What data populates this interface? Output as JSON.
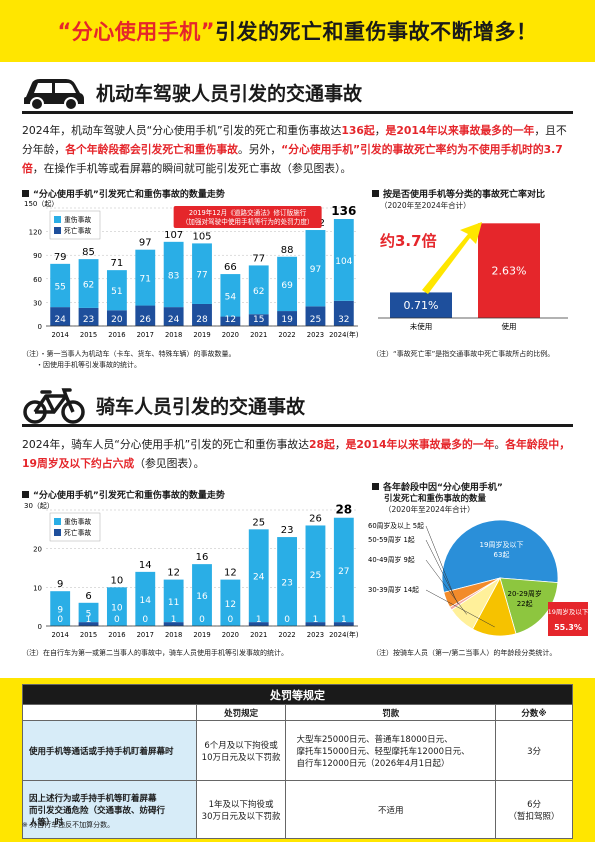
{
  "banner": {
    "q_open": "“",
    "phrase": "分心使用手机",
    "q_close": "”",
    "rest": "引发的死亡和重伤事故不断增多！"
  },
  "car": {
    "title": "机动车驾驶人员引发的交通事故",
    "p1": "2024年，机动车驾驶人员“分心使用手机”引发的死亡和重伤事故达",
    "p1_num": "136起",
    "p1_comma": "，",
    "p1_red2": "是2014年以来事故最多的一年",
    "p1_b": "，且不分年龄，",
    "p1_red3": "各个年龄段都会引发死亡和重伤事故",
    "p1_c": "。另外，",
    "p1_red4": "“分心使用手机”引发的事故死亡率约为不使用手机时的3.7倍",
    "p1_d": "，在操作手机等或看屏幕的瞬间就可能引发死亡事故（参见图表）。",
    "chart_title": "“分心使用手机”引发死亡和重伤事故的数量走势",
    "ratio_title": "按是否使用手机等分类的事故死亡率对比",
    "ratio_sub": "（2020年至2024年合计）",
    "note1": "（注）・第一当事人为机动车（卡车、货车、特殊车辆）的事故数量。",
    "note2": "・因使用手机等引发事故的统计。",
    "note3": "（注）“事故死亡率”是指交通事故中死亡事故所占的比例。"
  },
  "bike": {
    "title": "骑车人员引发的交通事故",
    "p1": "2024年，骑车人员“分心使用手机”引发的死亡和重伤事故达",
    "p1_num": "28起",
    "p1_comma": "，",
    "p1_red2": "是2014年以来事故最多的一年",
    "p1_b": "。",
    "p1_red3": "各年龄段中，19周岁及以下约占六成",
    "p1_c": "（参见图表）。",
    "chart_title": "“分心使用手机”引发死亡和重伤事故的数量走势",
    "pie_title1": "各年龄段中因“分心使用手机”",
    "pie_title2": "引发死亡和重伤事故的数量",
    "pie_sub": "（2020年至2024年合计）",
    "note1": "（注）在自行车为第一或第二当事人的事故中，骑车人员使用手机等引发事故的统计。",
    "note2": "（注）按骑车人员（第一/第二当事人）的年龄段分类统计。"
  },
  "penalty": {
    "caption": "处罚等规定",
    "h_rule": "处罚规定",
    "h_fine": "罚款",
    "h_points": "分数※",
    "r1_label": "使用手机等通话或手持手机盯着屏幕时",
    "r1_rule1": "6个月及以下拘役或",
    "r1_rule2": "10万日元及以下罚款",
    "r1_fine1": "大型车25000日元、普通车18000日元、",
    "r1_fine2": "摩托车15000日元、轻型摩托车12000日元、",
    "r1_fine3": "自行车12000日元（2026年4月1日起）",
    "r1_points": "3分",
    "r2_label1": "因上述行为或手持手机等盯着屏幕",
    "r2_label2": "而引发交通危险（交通事故、妨碍行",
    "r2_label3": "人等）时",
    "r2_rule1": "1年及以下拘役或",
    "r2_rule2": "30万日元及以下罚款",
    "r2_fine": "不适用",
    "r2_points1": "6分",
    "r2_points2": "（暂扣驾照）",
    "footnote": "※ 对自行车违反不加算分数。"
  },
  "colors": {
    "accent_yellow": "#ffe600",
    "red": "#e5262b",
    "injury": "#2aaee6",
    "death": "#1e4f9c"
  },
  "chart_data": [
    {
      "type": "bar",
      "title": "“分心使用手机”引发死亡和重伤事故的数量走势",
      "ylabel": "（起）",
      "ylim": [
        0,
        150
      ],
      "yticks": [
        0,
        30,
        60,
        90,
        120,
        150
      ],
      "categories": [
        "2014",
        "2015",
        "2016",
        "2017",
        "2018",
        "2019",
        "2020",
        "2021",
        "2022",
        "2023",
        "2024(年)"
      ],
      "series": [
        {
          "name": "死亡事故",
          "values": [
            24,
            23,
            20,
            26,
            24,
            28,
            12,
            15,
            19,
            25,
            32
          ]
        },
        {
          "name": "重伤事故",
          "values": [
            55,
            62,
            51,
            71,
            83,
            77,
            54,
            62,
            69,
            97,
            104
          ]
        }
      ],
      "totals": [
        79,
        85,
        71,
        97,
        107,
        105,
        66,
        77,
        88,
        122,
        136
      ],
      "annotation": "2019年12月《道路交通法》修订版施行（加强对驾驶中使用手机等行为的处罚力度）"
    },
    {
      "type": "bar",
      "title": "按是否使用手机等分类的事故死亡率对比",
      "categories": [
        "未使用",
        "使用"
      ],
      "values": [
        0.71,
        2.63
      ],
      "value_labels": [
        "0.71%",
        "2.63%"
      ],
      "annotation": "约3.7倍"
    },
    {
      "type": "bar",
      "title": "“分心使用手机”引发死亡和重伤事故的数量走势",
      "ylabel": "（起）",
      "ylim": [
        0,
        30
      ],
      "yticks": [
        0,
        10,
        20,
        30
      ],
      "categories": [
        "2014",
        "2015",
        "2016",
        "2017",
        "2018",
        "2019",
        "2020",
        "2021",
        "2022",
        "2023",
        "2024(年)"
      ],
      "series": [
        {
          "name": "死亡事故",
          "values": [
            0,
            1,
            0,
            0,
            1,
            0,
            0,
            1,
            0,
            1,
            1
          ]
        },
        {
          "name": "重伤事故",
          "values": [
            9,
            5,
            10,
            14,
            11,
            16,
            12,
            24,
            23,
            25,
            27
          ]
        }
      ],
      "totals": [
        9,
        6,
        10,
        14,
        12,
        16,
        12,
        25,
        23,
        26,
        28
      ]
    },
    {
      "type": "pie",
      "title": "各年龄段中因“分心使用手机”引发死亡和重伤事故的数量",
      "categories": [
        "19周岁及以下",
        "20-29周岁",
        "30-39周岁",
        "40-49周岁",
        "50-59周岁",
        "60周岁及以上"
      ],
      "values": [
        63,
        22,
        14,
        9,
        1,
        5
      ],
      "labels": [
        "19周岁及以下 63起",
        "20-29周岁 22起",
        "30-39周岁 14起",
        "40-49周岁 9起",
        "50-59周岁 1起",
        "60周岁及以上 5起"
      ],
      "callout": "19周岁及以下 55.3%"
    }
  ]
}
